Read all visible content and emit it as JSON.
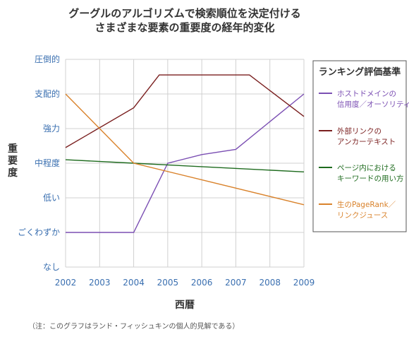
{
  "chart_data": {
    "type": "line",
    "title_lines": [
      "グーグルのアルゴリズムで検索順位を決定付ける",
      "さまざまな要素の重要度の経年的変化"
    ],
    "xlabel": "西暦",
    "ylabel_chars": [
      "重",
      "要",
      "度"
    ],
    "x_ticks": [
      "2002",
      "2003",
      "2004",
      "2005",
      "2006",
      "2007",
      "2008",
      "2009"
    ],
    "xlim": [
      2002,
      2009
    ],
    "y_ticks": [
      "なし",
      "ごくわずか",
      "低い",
      "中程度",
      "強力",
      "支配的",
      "圧倒的"
    ],
    "ylim": [
      0,
      6
    ],
    "grid": true,
    "legend_position": "right",
    "legend_title": "ランキング評価基準",
    "series": [
      {
        "name_lines": [
          "ホストドメインの",
          "信用度／オーソリティ"
        ],
        "color": "#7b4fb3",
        "x": [
          2002,
          2004,
          2005,
          2006,
          2007,
          2009
        ],
        "y": [
          1.0,
          1.0,
          3.0,
          3.25,
          3.4,
          5.0
        ]
      },
      {
        "name_lines": [
          "外部リンクの",
          "アンカーテキスト"
        ],
        "color": "#7a1f1f",
        "x": [
          2002,
          2004,
          2004.75,
          2007.4,
          2009
        ],
        "y": [
          3.45,
          4.6,
          5.55,
          5.55,
          4.35
        ]
      },
      {
        "name_lines": [
          "ページ内における",
          "キーワードの用い方"
        ],
        "color": "#1e6b1e",
        "x": [
          2002,
          2004,
          2009
        ],
        "y": [
          3.1,
          3.0,
          2.75
        ]
      },
      {
        "name_lines": [
          "生のPageRank／",
          "リンクジュース"
        ],
        "color": "#d9822b",
        "x": [
          2002,
          2004,
          2009
        ],
        "y": [
          5.0,
          3.0,
          1.8
        ]
      }
    ],
    "footnote": "（注：このグラフはランド・フィッシュキンの個人的見解である）"
  }
}
